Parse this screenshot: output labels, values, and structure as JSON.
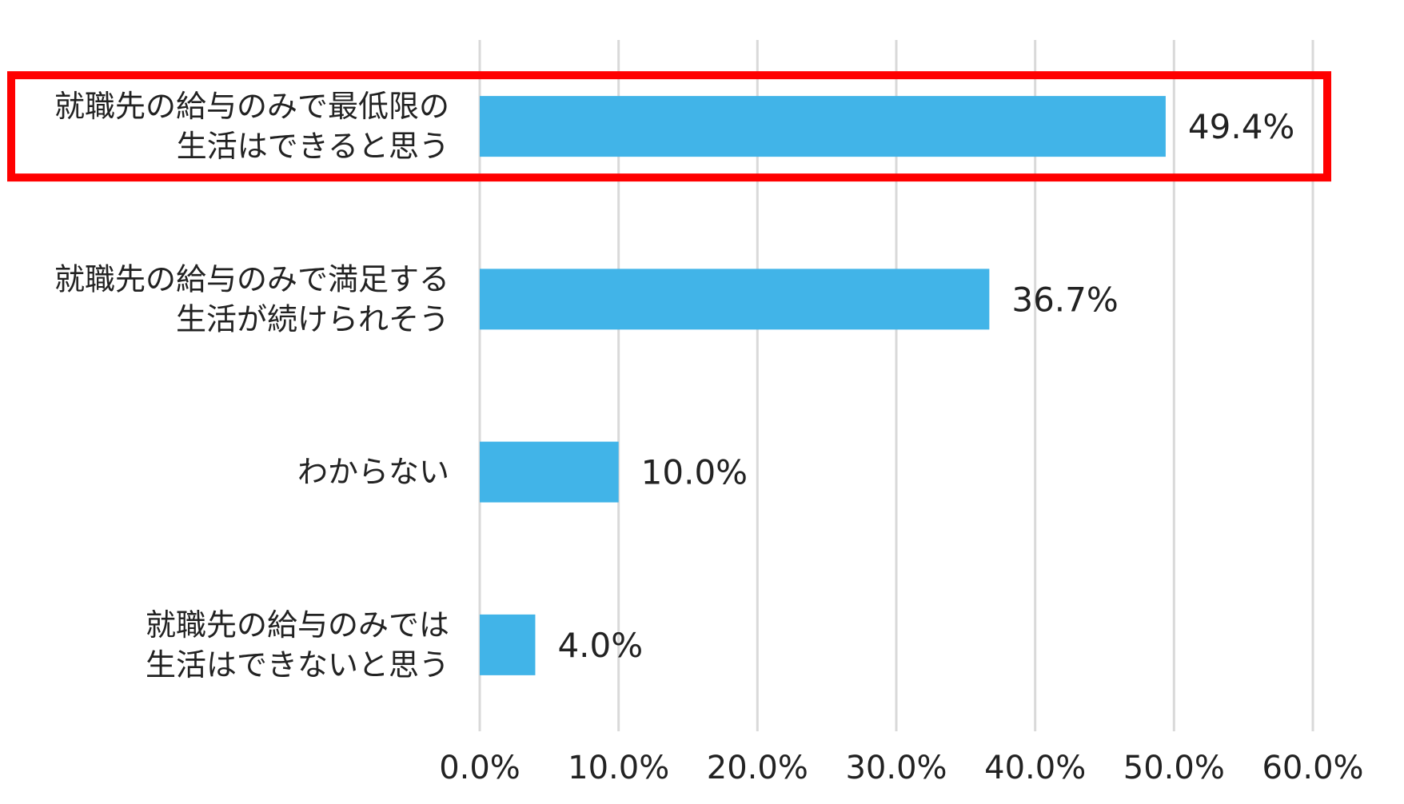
{
  "chart_data": {
    "type": "bar",
    "orientation": "horizontal",
    "title": "",
    "xlabel": "",
    "ylabel": "",
    "categories": [
      [
        "就職先の給与のみで最低限の",
        "生活はできると思う"
      ],
      [
        "就職先の給与のみで満足する",
        "生活が続けられそう"
      ],
      [
        "わからない"
      ],
      [
        "就職先の給与のみでは",
        "生活はできないと思う"
      ]
    ],
    "values": [
      49.4,
      36.7,
      10.0,
      4.0
    ],
    "value_labels": [
      "49.4%",
      "36.7%",
      "10.0%",
      "4.0%"
    ],
    "xlim": [
      0,
      60
    ],
    "ticks": [
      0,
      10,
      20,
      30,
      40,
      50,
      60
    ],
    "tick_labels": [
      "0.0%",
      "10.0%",
      "20.0%",
      "30.0%",
      "40.0%",
      "50.0%",
      "60.0%"
    ],
    "grid": "vertical",
    "legend": "none",
    "highlight_category_index": 0,
    "colors": {
      "bar": "#41b4e8",
      "grid": "#d9d9d9",
      "highlight": "#ff0000"
    }
  }
}
